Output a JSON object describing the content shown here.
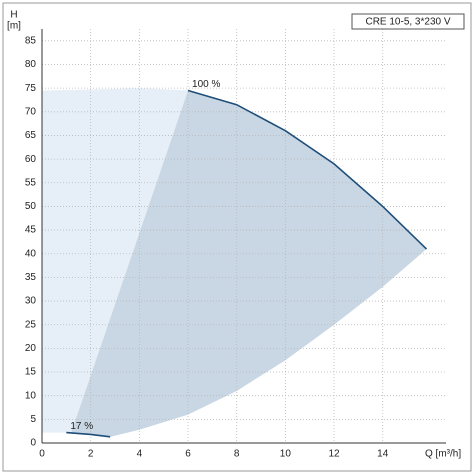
{
  "chart_data": {
    "type": "line",
    "title": "CRE 10-5, 3*230 V",
    "ylabel": "H",
    "yunit": "[m]",
    "xlabel": "Q [m³/h]",
    "xlim": [
      0,
      16.6
    ],
    "ylim": [
      0,
      87.5
    ],
    "xticks": [
      0,
      2,
      4,
      6,
      8,
      10,
      12,
      14
    ],
    "yticks": [
      0,
      5,
      10,
      15,
      20,
      25,
      30,
      35,
      40,
      45,
      50,
      55,
      60,
      65,
      70,
      75,
      80,
      85
    ],
    "grid": true,
    "areas": [
      {
        "color": "#e6eff8",
        "x": [
          0,
          0,
          2,
          4,
          6,
          1.2,
          0
        ],
        "values": [
          0,
          74.5,
          74.7,
          75,
          74.5,
          2.2,
          2.2
        ]
      },
      {
        "color": "#c9d7e4",
        "x": [
          1.2,
          6,
          8,
          10,
          12,
          14,
          15.8,
          14,
          12,
          10,
          8,
          6,
          4,
          2.8,
          2
        ],
        "values": [
          2.2,
          74.5,
          71.5,
          66,
          59,
          50,
          41,
          33,
          25,
          17.5,
          11,
          6,
          2.8,
          1.3,
          1.8
        ]
      }
    ],
    "series": [
      {
        "name": "100 %",
        "color": "#1f4e79",
        "x": [
          6,
          8,
          10,
          12,
          14,
          15.8
        ],
        "values": [
          74.5,
          71.5,
          66,
          59,
          50,
          41
        ]
      },
      {
        "name": "17 %",
        "color": "#1f4e79",
        "x": [
          1,
          2,
          2.8
        ],
        "values": [
          2.2,
          1.8,
          1.3
        ]
      }
    ]
  }
}
